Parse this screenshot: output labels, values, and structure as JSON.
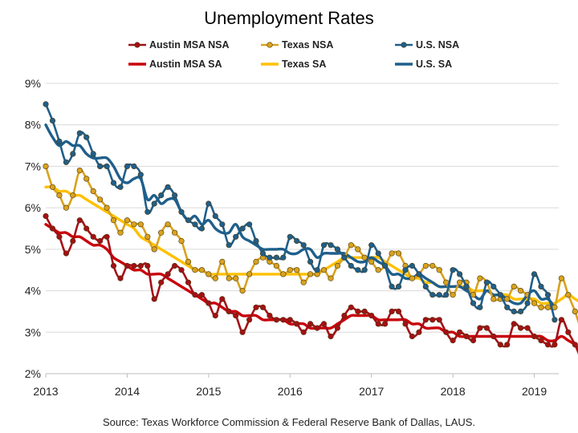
{
  "chart_data": {
    "type": "line",
    "title": "Unemployment Rates",
    "source": "Source:  Texas Workforce Commission & Federal Reserve Bank of Dallas, LAUS.",
    "x_axis": {
      "min": 2013,
      "max": 2019.3,
      "ticks": [
        "2013",
        "2014",
        "2015",
        "2016",
        "2017",
        "2018",
        "2019"
      ]
    },
    "y_axis": {
      "min": 2,
      "max": 9,
      "ticks": [
        "2%",
        "3%",
        "4%",
        "5%",
        "6%",
        "7%",
        "8%",
        "9%"
      ]
    },
    "grid": "horizontal",
    "legend_position": "top",
    "series": [
      {
        "name": "Austin MSA NSA",
        "color": "#A50F15",
        "style": "marker",
        "x_start": 2013.0,
        "step": 0.08333,
        "values": [
          5.8,
          5.5,
          5.3,
          4.9,
          5.2,
          5.7,
          5.5,
          5.3,
          5.2,
          5.3,
          4.6,
          4.3,
          4.6,
          4.6,
          4.6,
          4.6,
          3.8,
          4.2,
          4.4,
          4.6,
          4.5,
          4.2,
          3.9,
          3.9,
          3.7,
          3.4,
          3.8,
          3.5,
          3.4,
          3.0,
          3.3,
          3.6,
          3.6,
          3.4,
          3.3,
          3.3,
          3.3,
          3.2,
          3.0,
          3.2,
          3.1,
          3.2,
          2.9,
          3.1,
          3.4,
          3.6,
          3.5,
          3.5,
          3.4,
          3.2,
          3.2,
          3.5,
          3.5,
          3.2,
          2.9,
          3.0,
          3.3,
          3.3,
          3.3,
          3.0,
          2.8,
          3.0,
          2.9,
          2.8,
          3.1,
          3.1,
          2.9,
          2.7,
          2.7,
          3.2,
          3.1,
          3.1,
          2.9,
          2.8,
          2.7,
          2.7,
          3.3,
          3.0,
          2.7,
          2.3
        ]
      },
      {
        "name": "Texas NSA",
        "color": "#D9A21E",
        "style": "marker",
        "x_start": 2013.0,
        "step": 0.08333,
        "values": [
          7.0,
          6.5,
          6.3,
          6.0,
          6.3,
          6.9,
          6.7,
          6.4,
          6.2,
          6.0,
          5.7,
          5.4,
          5.7,
          5.6,
          5.6,
          5.3,
          5.0,
          5.4,
          5.6,
          5.4,
          5.2,
          4.7,
          4.5,
          4.5,
          4.4,
          4.3,
          4.7,
          4.3,
          4.3,
          4.0,
          4.4,
          4.7,
          4.8,
          4.7,
          4.6,
          4.4,
          4.5,
          4.5,
          4.2,
          4.4,
          4.4,
          4.5,
          4.3,
          4.6,
          4.8,
          5.1,
          5.0,
          4.8,
          4.7,
          4.5,
          4.6,
          4.9,
          4.9,
          4.6,
          4.3,
          4.4,
          4.6,
          4.6,
          4.5,
          4.2,
          3.9,
          4.2,
          4.2,
          3.9,
          4.3,
          4.2,
          3.8,
          3.8,
          3.8,
          4.1,
          4.0,
          3.9,
          3.7,
          3.6,
          3.6,
          3.6,
          4.3,
          3.9,
          3.5,
          3.0
        ]
      },
      {
        "name": "U.S. NSA",
        "color": "#1F5F8B",
        "style": "marker",
        "x_start": 2013.0,
        "step": 0.08333,
        "values": [
          8.5,
          8.1,
          7.6,
          7.1,
          7.3,
          7.8,
          7.7,
          7.3,
          7.0,
          7.0,
          6.6,
          6.5,
          7.0,
          7.0,
          6.8,
          5.9,
          6.1,
          6.3,
          6.5,
          6.3,
          5.9,
          5.7,
          5.6,
          5.5,
          6.1,
          5.8,
          5.6,
          5.1,
          5.3,
          5.5,
          5.6,
          5.2,
          4.9,
          4.8,
          4.8,
          4.8,
          5.3,
          5.2,
          5.1,
          4.7,
          4.5,
          5.1,
          5.1,
          5.0,
          4.8,
          4.6,
          4.5,
          4.5,
          5.1,
          4.9,
          4.6,
          4.1,
          4.1,
          4.5,
          4.6,
          4.4,
          4.1,
          3.9,
          3.9,
          3.9,
          4.5,
          4.4,
          4.1,
          3.7,
          3.6,
          4.2,
          4.1,
          3.9,
          3.6,
          3.5,
          3.5,
          3.7,
          4.4,
          4.1,
          3.9,
          3.3
        ]
      },
      {
        "name": "Austin MSA SA",
        "color": "#C8000A",
        "style": "line",
        "x_start": 2013.0,
        "step": 0.08333,
        "values": [
          5.6,
          5.5,
          5.4,
          5.4,
          5.3,
          5.3,
          5.2,
          5.1,
          5.1,
          5.0,
          4.8,
          4.7,
          4.6,
          4.5,
          4.5,
          4.4,
          4.4,
          4.4,
          4.3,
          4.2,
          4.1,
          4.0,
          3.9,
          3.8,
          3.7,
          3.7,
          3.6,
          3.5,
          3.5,
          3.4,
          3.4,
          3.4,
          3.3,
          3.3,
          3.3,
          3.3,
          3.2,
          3.2,
          3.2,
          3.1,
          3.1,
          3.1,
          3.1,
          3.2,
          3.3,
          3.4,
          3.4,
          3.4,
          3.4,
          3.3,
          3.3,
          3.3,
          3.3,
          3.3,
          3.2,
          3.2,
          3.1,
          3.1,
          3.1,
          3.0,
          3.0,
          2.9,
          2.9,
          2.9,
          2.9,
          2.9,
          2.9,
          2.9,
          2.9,
          2.9,
          2.9,
          2.9,
          2.9,
          2.9,
          2.8,
          2.8,
          2.9,
          2.8,
          2.7,
          2.5
        ]
      },
      {
        "name": "Texas SA",
        "color": "#FFC000",
        "style": "line",
        "x_start": 2013.0,
        "step": 0.08333,
        "values": [
          6.5,
          6.5,
          6.4,
          6.4,
          6.3,
          6.3,
          6.2,
          6.1,
          6.0,
          5.9,
          5.8,
          5.7,
          5.6,
          5.5,
          5.3,
          5.2,
          5.1,
          5.0,
          4.9,
          4.8,
          4.7,
          4.6,
          4.5,
          4.5,
          4.4,
          4.4,
          4.4,
          4.4,
          4.4,
          4.4,
          4.4,
          4.4,
          4.4,
          4.4,
          4.4,
          4.4,
          4.4,
          4.4,
          4.4,
          4.4,
          4.4,
          4.5,
          4.6,
          4.7,
          4.8,
          4.8,
          4.8,
          4.8,
          4.8,
          4.8,
          4.7,
          4.6,
          4.5,
          4.4,
          4.3,
          4.3,
          4.2,
          4.2,
          4.1,
          4.1,
          4.1,
          4.1,
          4.1,
          4.0,
          4.0,
          4.0,
          3.9,
          3.9,
          3.9,
          3.8,
          3.8,
          3.8,
          3.8,
          3.7,
          3.7,
          3.7,
          3.8,
          3.9,
          3.8,
          3.7
        ]
      },
      {
        "name": "U.S. SA",
        "color": "#1F5F8B",
        "style": "line",
        "x_start": 2013.0,
        "step": 0.08333,
        "values": [
          8.0,
          7.7,
          7.5,
          7.6,
          7.5,
          7.5,
          7.3,
          7.2,
          7.2,
          7.2,
          7.0,
          6.7,
          6.6,
          6.7,
          6.7,
          6.2,
          6.3,
          6.1,
          6.2,
          6.2,
          5.9,
          5.7,
          5.8,
          5.6,
          5.7,
          5.5,
          5.4,
          5.4,
          5.6,
          5.3,
          5.2,
          5.1,
          5.0,
          5.0,
          5.0,
          5.0,
          4.9,
          4.9,
          5.0,
          5.0,
          4.8,
          4.9,
          4.9,
          4.9,
          4.9,
          4.8,
          4.7,
          4.7,
          4.8,
          4.7,
          4.6,
          4.4,
          4.4,
          4.3,
          4.3,
          4.4,
          4.3,
          4.2,
          4.1,
          4.1,
          4.1,
          4.1,
          4.0,
          3.9,
          3.8,
          4.0,
          3.9,
          3.9,
          3.8,
          3.7,
          3.7,
          3.9,
          4.0,
          3.8,
          3.8,
          3.6
        ]
      }
    ]
  }
}
